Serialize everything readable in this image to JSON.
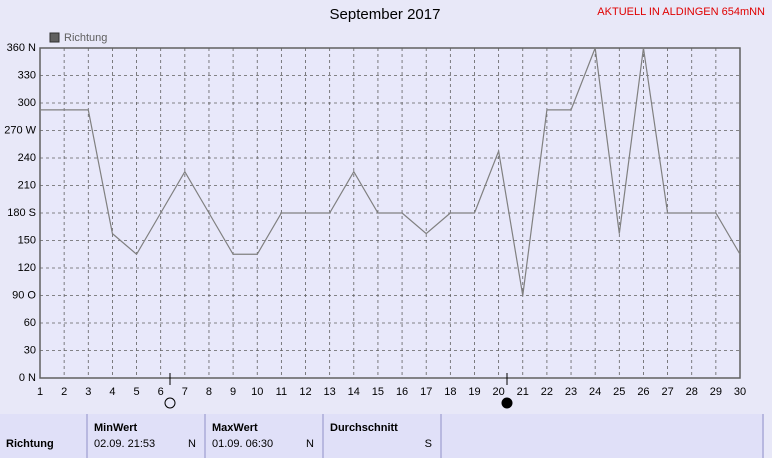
{
  "chart_data": {
    "type": "line",
    "title": "September 2017",
    "annotation": "AKTUELL IN ALDINGEN 654mNN",
    "x": [
      1,
      2,
      3,
      4,
      5,
      6,
      7,
      8,
      9,
      10,
      11,
      12,
      13,
      14,
      15,
      16,
      17,
      18,
      19,
      20,
      21,
      22,
      23,
      24,
      25,
      26,
      27,
      28,
      29,
      30
    ],
    "series": [
      {
        "name": "Richtung",
        "color": "#808080",
        "values": [
          292.5,
          292.5,
          292.5,
          157.5,
          135,
          180,
          225,
          180,
          135,
          135,
          180,
          180,
          180,
          225,
          180,
          180,
          157.5,
          180,
          180,
          247.5,
          90,
          292.5,
          292.5,
          360,
          157.5,
          360,
          180,
          180,
          180,
          135
        ]
      }
    ],
    "xlim": [
      1,
      30
    ],
    "xticks": [
      1,
      2,
      3,
      4,
      5,
      6,
      7,
      8,
      9,
      10,
      11,
      12,
      13,
      14,
      15,
      16,
      17,
      18,
      19,
      20,
      21,
      22,
      23,
      24,
      25,
      26,
      27,
      28,
      29,
      30
    ],
    "ylim": [
      0,
      360
    ],
    "yticks": [
      {
        "value": 0,
        "label": "0 N"
      },
      30,
      60,
      {
        "value": 90,
        "label": "90 O"
      },
      120,
      150,
      {
        "value": 180,
        "label": "180 S"
      },
      210,
      240,
      {
        "value": 270,
        "label": "270 W"
      },
      300,
      330,
      {
        "value": 360,
        "label": "360 N"
      }
    ],
    "grid": true
  },
  "summary_table": {
    "row_label": "Richtung",
    "columns": [
      {
        "header": "MinWert",
        "date": "02.09.  21:53",
        "value": "N"
      },
      {
        "header": "MaxWert",
        "date": "01.09.  06:30",
        "value": "N"
      },
      {
        "header": "Durchschnitt",
        "value": "S"
      }
    ]
  }
}
